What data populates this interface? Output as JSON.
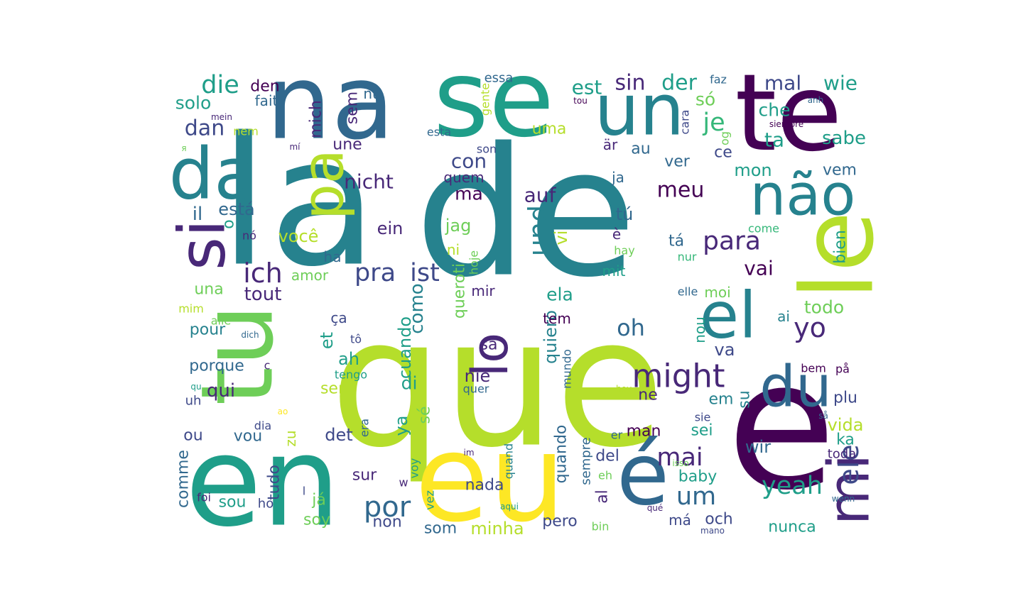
{
  "palette": {
    "dark_purple": "#440154",
    "indigo": "#482878",
    "blue": "#3e4989",
    "steel": "#31688e",
    "teal": "#26828e",
    "sea": "#1f9e89",
    "green": "#35b779",
    "light_green": "#6ece58",
    "lime": "#b5de2b",
    "yellow": "#fde725"
  },
  "words": [
    "que",
    "de",
    "e",
    "la",
    "en",
    "eu",
    "se",
    "te",
    "tu",
    "na",
    "le",
    "é",
    "da",
    "un",
    "não",
    "el",
    "si",
    "du",
    "pa",
    "mi",
    "lo",
    "might",
    "ich",
    "por",
    "pra",
    "ist",
    "yo",
    "para",
    "oh",
    "mai",
    "um",
    "yeah",
    "ele",
    "und",
    "con",
    "nicht",
    "auf",
    "meu",
    "vai",
    "die",
    "sin",
    "der",
    "est",
    "mal",
    "wie",
    "je",
    "só",
    "dan",
    "solo",
    "den",
    "fait",
    "mich",
    "sem",
    "nu",
    "essa",
    "che",
    "ta",
    "sabe",
    "uma",
    "ce",
    "ver",
    "au",
    "är",
    "une",
    "mon",
    "vem",
    "quem",
    "ma",
    "ja",
    "il",
    "está",
    "ein",
    "jag",
    "tú",
    "bien",
    "você",
    "vi",
    "ni",
    "tá",
    "è",
    "o",
    "nó",
    "amor",
    "ha",
    "tout",
    "una",
    "mir",
    "moi",
    "mit",
    "todo",
    "ela",
    "como",
    "quiero",
    "queroti",
    "ça",
    "et",
    "ah",
    "cuando",
    "sa",
    "pour",
    "porque",
    "qui",
    "ser",
    "di",
    "nie",
    "tem",
    "ya",
    "sé",
    "det",
    "vou",
    "zu",
    "sur",
    "nada",
    "som",
    "minha",
    "pero",
    "al",
    "del",
    "má",
    "och",
    "nunca",
    "wir",
    "ka",
    "vida",
    "sei",
    "em",
    "su",
    "ne",
    "plu",
    "toda",
    "baby",
    "comme",
    "tudo",
    "sou",
    "ho",
    "já",
    "soy",
    "non",
    "ou",
    "uh",
    "dia",
    "quando",
    "sempre",
    "man",
    "er",
    "eh",
    "hay",
    "nur",
    "elle",
    "ai",
    "nou",
    "va",
    "bem",
    "på",
    "sie",
    "hey",
    "mundo",
    "quer",
    "tengo",
    "era",
    "voy",
    "vez",
    "hoje",
    "gente",
    "son",
    "esta",
    "og",
    "cara",
    "anh",
    "siempre",
    "tou",
    "faz",
    "come",
    "mein",
    "mí",
    "я",
    "nem",
    "c",
    "qu",
    "mim",
    "alle",
    "dich",
    "tô",
    "ao",
    "foi",
    "l",
    "w",
    "im",
    "quand",
    "aqui",
    "qué",
    "bin",
    "mano",
    "isso",
    "så",
    "wenn"
  ]
}
